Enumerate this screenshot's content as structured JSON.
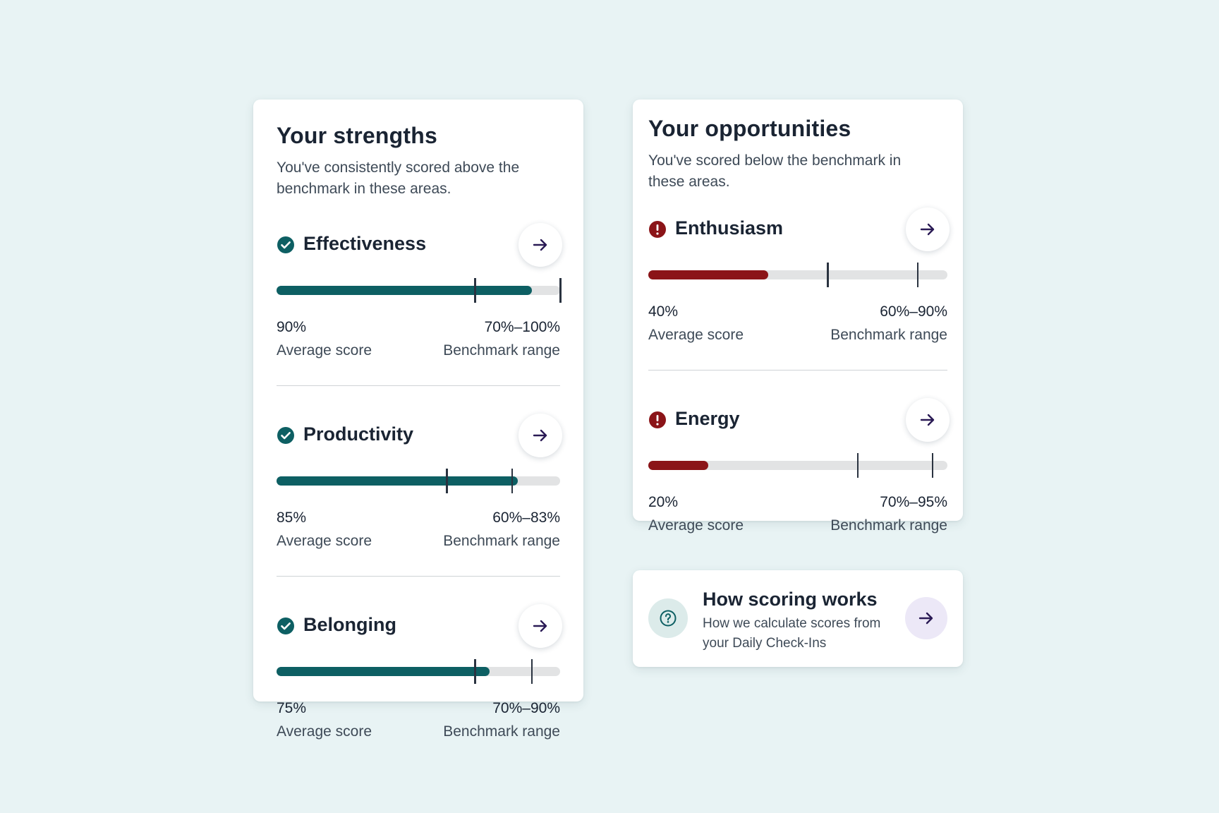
{
  "colors": {
    "background": "#e8f3f4",
    "strength_fill": "#0d5f63",
    "opportunity_fill": "#8b1418",
    "track": "#e2e3e4",
    "arrow": "#2a1a55"
  },
  "strengths": {
    "title": "Your strengths",
    "subtitle": "You've consistently scored above the benchmark in these areas.",
    "items": [
      {
        "label": "Effectiveness",
        "icon": "check-circle-icon",
        "score": 90,
        "score_text": "90%",
        "bench_low": 70,
        "bench_high": 100,
        "bench_text": "70%–100%",
        "score_caption": "Average score",
        "bench_caption": "Benchmark range"
      },
      {
        "label": "Productivity",
        "icon": "check-circle-icon",
        "score": 85,
        "score_text": "85%",
        "bench_low": 60,
        "bench_high": 83,
        "bench_text": "60%–83%",
        "score_caption": "Average score",
        "bench_caption": "Benchmark range"
      },
      {
        "label": "Belonging",
        "icon": "check-circle-icon",
        "score": 75,
        "score_text": "75%",
        "bench_low": 70,
        "bench_high": 90,
        "bench_text": "70%–90%",
        "score_caption": "Average score",
        "bench_caption": "Benchmark range"
      }
    ]
  },
  "opportunities": {
    "title": "Your opportunities",
    "subtitle": "You've scored below the benchmark in these areas.",
    "items": [
      {
        "label": "Enthusiasm",
        "icon": "alert-circle-icon",
        "score": 40,
        "score_text": "40%",
        "bench_low": 60,
        "bench_high": 90,
        "bench_text": "60%–90%",
        "score_caption": "Average score",
        "bench_caption": "Benchmark range"
      },
      {
        "label": "Energy",
        "icon": "alert-circle-icon",
        "score": 20,
        "score_text": "20%",
        "bench_low": 70,
        "bench_high": 95,
        "bench_text": "70%–95%",
        "score_caption": "Average score",
        "bench_caption": "Benchmark range"
      }
    ]
  },
  "how_scoring": {
    "title": "How scoring works",
    "description": "How we calculate scores from your Daily Check-Ins",
    "icon": "question-circle-icon"
  }
}
